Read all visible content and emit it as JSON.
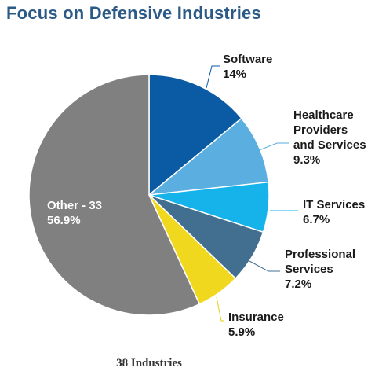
{
  "chart_data": {
    "type": "pie",
    "title": "Focus on Defensive Industries",
    "footer": "38 Industries",
    "start": "top, clockwise",
    "slices": [
      {
        "lines": [
          "Software"
        ],
        "value_label": "14%",
        "value": 14.0,
        "color": "#0b5aa4"
      },
      {
        "lines": [
          "Healthcare",
          "Providers",
          "and Services"
        ],
        "value_label": "9.3%",
        "value": 9.3,
        "color": "#5aaee0"
      },
      {
        "lines": [
          "IT Services"
        ],
        "value_label": "6.7%",
        "value": 6.7,
        "color": "#16b3ea"
      },
      {
        "lines": [
          "Professional",
          "Services"
        ],
        "value_label": "7.2%",
        "value": 7.2,
        "color": "#426f8f"
      },
      {
        "lines": [
          "Insurance"
        ],
        "value_label": "5.9%",
        "value": 5.9,
        "color": "#f0d81e"
      },
      {
        "lines": [
          "Other - 33"
        ],
        "value_label": "56.9%",
        "value": 56.9,
        "color": "#808080"
      }
    ]
  }
}
